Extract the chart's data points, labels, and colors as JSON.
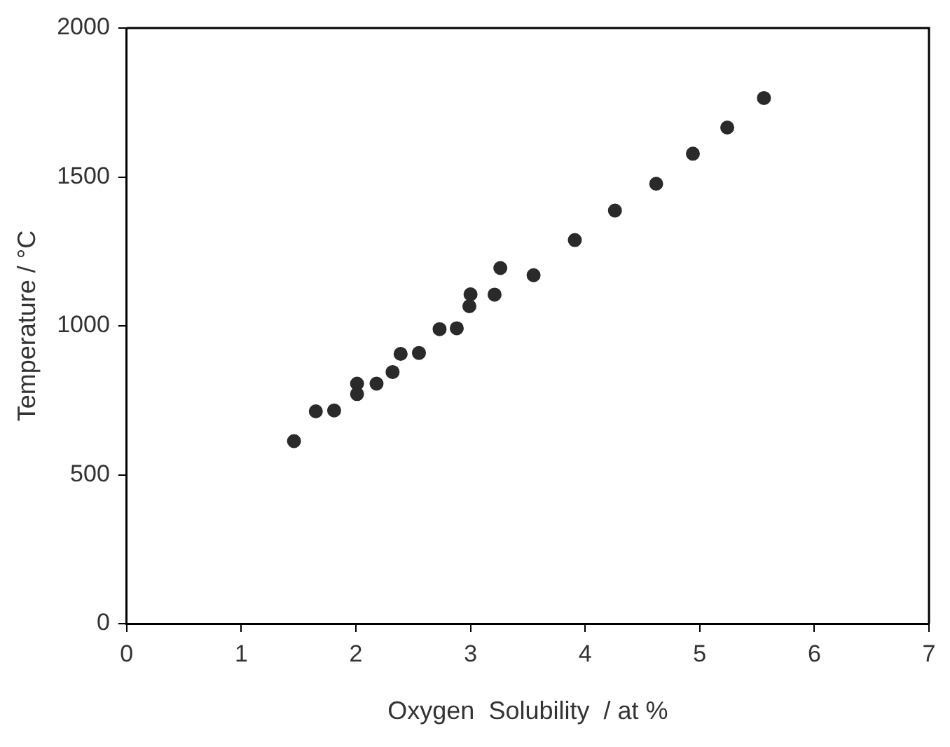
{
  "chart_data": {
    "type": "scatter",
    "xlabel": "Oxygen  Solubility  / at %",
    "ylabel": "Temperature / °C",
    "x": [
      1.46,
      1.65,
      1.81,
      2.01,
      2.01,
      2.18,
      2.32,
      2.39,
      2.55,
      2.73,
      2.88,
      2.99,
      3.0,
      3.21,
      3.26,
      3.55,
      3.91,
      4.26,
      4.62,
      4.94,
      5.24,
      5.56
    ],
    "series": [
      {
        "color": "#2a2a2a",
        "values": [
          613,
          713,
          716,
          806,
          771,
          806,
          845,
          906,
          909,
          989,
          992,
          1066,
          1106,
          1105,
          1194,
          1170,
          1288,
          1387,
          1477,
          1578,
          1666,
          1765
        ]
      }
    ],
    "xlim": [
      0,
      7
    ],
    "xticks": [
      0,
      1,
      2,
      3,
      4,
      5,
      6,
      7
    ],
    "ylim": [
      0,
      2000
    ],
    "yticks": [
      0,
      500,
      1000,
      1500,
      2000
    ],
    "grid": false,
    "legend": false,
    "marker": "circle"
  }
}
